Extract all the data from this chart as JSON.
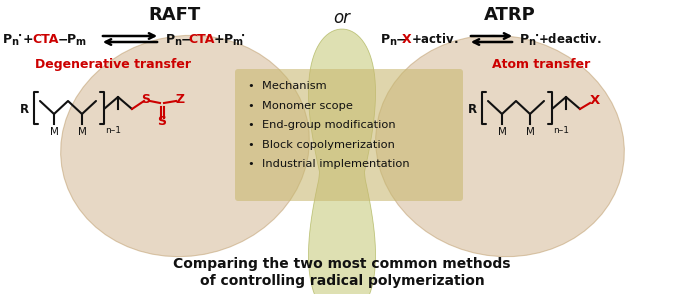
{
  "title_raft": "RAFT",
  "title_atrp": "ATRP",
  "title_or": "or",
  "label_raft": "Degenerative transfer",
  "label_atrp": "Atom transfer",
  "bullet_points": [
    "Mechanism",
    "Monomer scope",
    "End-group modification",
    "Block copolymerization",
    "Industrial implementation"
  ],
  "footer1": "Comparing the two most common methods",
  "footer2": "of controlling radical polymerization",
  "color_red": "#CC0000",
  "color_black": "#111111",
  "color_bg": "#ffffff",
  "blob_wing_color": "#D4B896",
  "blob_center_color": "#C8CC80",
  "bullet_bg": "#C8B870",
  "figsize": [
    6.85,
    2.94
  ],
  "dpi": 100
}
